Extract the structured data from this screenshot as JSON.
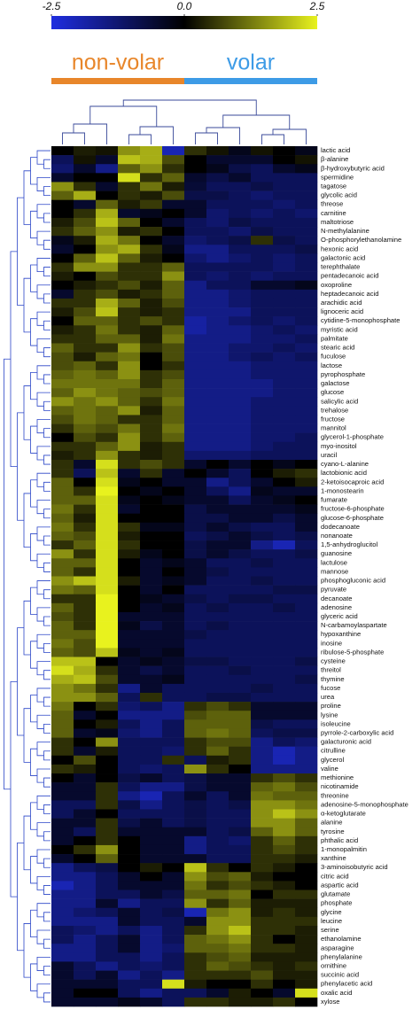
{
  "chart_data": {
    "type": "heatmap",
    "clim": [
      -2.5,
      2.5
    ],
    "cticks": [
      -2.5,
      {
        "value": 0,
        "label": "0.0"
      },
      2.5
    ],
    "colors": [
      "#1f2ee0",
      "#000000",
      "#e8f21e"
    ],
    "groups": [
      {
        "name": "non-volar",
        "color": "#e8862a",
        "columns": 6
      },
      {
        "name": "volar",
        "color": "#3d9be6",
        "columns": 6
      }
    ],
    "rows": [
      "lactic acid",
      "β-alanine",
      "β-hydroxybutyric acid",
      "spermidine",
      "tagatose",
      "glycolic acid",
      "threose",
      "carnitine",
      "maltotriose",
      "N-methylalanine",
      "O-phosphorylethanolamine",
      "hexonic acid",
      "galactonic acid",
      "terephthalate",
      "pentadecanoic acid",
      "oxoproline",
      "heptadecanoic acid",
      "arachidic acid",
      "lignoceric acid",
      "cytidine-5-monophosphate",
      "myristic acid",
      "palmitate",
      "stearic acid",
      "fuculose",
      "lactose",
      "pyrophosphate",
      "galactose",
      "glucose",
      "salicylic acid",
      "trehalose",
      "fructose",
      "mannitol",
      "glycerol-1-phosphate",
      "myo-inositol",
      "uracil",
      "cyano-L-alanine",
      "lactobionic acid",
      "2-ketoisocaproic acid",
      "1-monostearin",
      "fumarate",
      "fructose-6-phosphate",
      "glucose-6-phosphate",
      "dodecanoate",
      "nonanoate",
      "1,5-anhydroglucitol",
      "guanosine",
      "lactulose",
      "mannose",
      "phosphogluconic acid",
      "pyruvate",
      "decanoate",
      "adenosine",
      "glyceric acid",
      "N-carbamoylaspartate",
      "hypoxanthine",
      "inosine",
      "ribulose-5-phosphate",
      "cysteine",
      "threitol",
      "thymine",
      "fucose",
      "urea",
      "proline",
      "lysine",
      "isoleucine",
      "pyrrole-2-carboxylic acid",
      "galacturonic acid",
      "citrulline",
      "glycerol",
      "valine",
      "methionine",
      "nicotinamide",
      "threonine",
      "adenosine-5-monophosphate",
      "α-ketoglutarate",
      "alanine",
      "tyrosine",
      "phthalic acid",
      "1-monopalmitin",
      "xanthine",
      "3-aminoisobutyric acid",
      "citric acid",
      "aspartic acid",
      "glutamate",
      "phosphate",
      "glycine",
      "leucine",
      "serine",
      "ethanolamine",
      "asparagine",
      "phenylalanine",
      "ornithine",
      "succinic acid",
      "phenylacetic acid",
      "oxalic acid",
      "xylose"
    ],
    "values": [
      [
        0,
        0.3,
        0.2,
        1.5,
        1.8,
        -2,
        0.5,
        0.2,
        -0.3,
        0.2,
        0,
        -0.3
      ],
      [
        -1,
        0.2,
        -0.5,
        2,
        1.8,
        0.8,
        0,
        -0.5,
        -0.5,
        -0.5,
        0,
        0.2
      ],
      [
        -1.2,
        -0.5,
        -1.5,
        1,
        1.5,
        0.5,
        0,
        -0.3,
        -0.8,
        -1,
        -0.5,
        -0.3
      ],
      [
        -0.5,
        0,
        0,
        2.3,
        0.5,
        1,
        -0.5,
        -0.8,
        -0.5,
        -1,
        -1,
        -1
      ],
      [
        1.5,
        0.5,
        -0.5,
        0.5,
        1.2,
        0.3,
        -0.6,
        -1,
        -1,
        -0.8,
        -1,
        -1
      ],
      [
        1,
        1.8,
        0,
        0.5,
        0.3,
        0.8,
        -0.8,
        -0.8,
        -1,
        -1.2,
        -1,
        -1
      ],
      [
        0,
        -0.5,
        1,
        0.3,
        0.6,
        -0.5,
        -0.5,
        -1,
        -1,
        -1,
        -1.2,
        -1
      ],
      [
        0,
        0.5,
        1.8,
        -0.5,
        -0.3,
        0,
        -0.5,
        -1.2,
        -1,
        -1.2,
        -1,
        -1.2
      ],
      [
        0.3,
        0.8,
        2,
        1,
        0,
        -0.5,
        -1,
        -1.2,
        -0.8,
        -1,
        -1,
        -1
      ],
      [
        0.5,
        1,
        1.5,
        0.3,
        0.5,
        0,
        -1,
        -1,
        -1.2,
        -0.8,
        -1,
        -1
      ],
      [
        -0.3,
        0.3,
        1.8,
        1.2,
        0,
        -0.5,
        -1.2,
        -1,
        -0.8,
        0.5,
        -0.8,
        -1
      ],
      [
        -0.5,
        0,
        1.5,
        1.8,
        0.5,
        -0.3,
        -1.5,
        -1.5,
        -1,
        -1,
        -1,
        -0.8
      ],
      [
        0,
        1,
        2,
        1,
        0.3,
        0,
        -1.2,
        -1.5,
        -1.2,
        -1,
        -1.2,
        -1
      ],
      [
        0.5,
        1.5,
        1.5,
        0.5,
        0.5,
        1,
        -1,
        -1,
        -1,
        -1,
        -1.2,
        -1
      ],
      [
        0.3,
        0,
        0.8,
        0.5,
        0.5,
        1.5,
        -1,
        -1.2,
        -1,
        -1.2,
        -1,
        -1
      ],
      [
        0,
        0.3,
        0.5,
        0.8,
        0.3,
        1,
        -1.5,
        -1,
        -1,
        -0.5,
        -0.5,
        -0.3
      ],
      [
        -0.5,
        0.5,
        0.8,
        0.3,
        0.5,
        1,
        -1.5,
        -1.5,
        -1.2,
        -1,
        -1,
        -1
      ],
      [
        0.5,
        0.5,
        1.8,
        1,
        0.3,
        0.8,
        -1.5,
        -1.5,
        -1.2,
        -1,
        -1,
        -1
      ],
      [
        0.3,
        0.8,
        2,
        0.5,
        0.3,
        0.5,
        -1.5,
        -1.5,
        -1.5,
        -1,
        -1,
        -1
      ],
      [
        0,
        1,
        1,
        0.5,
        0.8,
        0.5,
        -1.8,
        -1.5,
        -1.2,
        -1,
        -1.2,
        -1
      ],
      [
        0.3,
        0.5,
        1.2,
        0.5,
        0.3,
        1,
        -1.8,
        -1.5,
        -1.5,
        -1.2,
        -1,
        -1.2
      ],
      [
        0.5,
        0.5,
        1,
        1,
        0.3,
        1.2,
        -1.5,
        -1.5,
        -1.5,
        -1.2,
        -1.2,
        -1
      ],
      [
        1,
        0.5,
        0.5,
        1.5,
        0.5,
        0.8,
        -1.5,
        -1.5,
        -1.2,
        -1.2,
        -1,
        -1.2
      ],
      [
        0.8,
        0.3,
        1,
        1.2,
        0,
        0.8,
        -1.5,
        -1.5,
        -1.2,
        -1,
        -1.2,
        -1
      ],
      [
        0.8,
        1,
        0.5,
        1.5,
        0,
        0.5,
        -1.5,
        -1.5,
        -1.5,
        -1.2,
        -1.2,
        -1.2
      ],
      [
        1,
        1.2,
        1,
        1.5,
        0.5,
        0.8,
        -1.5,
        -1.5,
        -1.5,
        -1.2,
        -1.2,
        -1.2
      ],
      [
        1.2,
        1.2,
        1.2,
        1.2,
        0.5,
        1,
        -1.5,
        -1.5,
        -1.5,
        -1.5,
        -1.2,
        -1.2
      ],
      [
        1,
        1.5,
        1.2,
        1,
        0.8,
        1,
        -1.5,
        -1.5,
        -1.5,
        -1.5,
        -1.2,
        -1.2
      ],
      [
        1.5,
        1.2,
        1.5,
        1,
        0.5,
        1.2,
        -1.5,
        -1.5,
        -1.5,
        -1.2,
        -1.2,
        -1.2
      ],
      [
        1,
        1.2,
        1,
        1.5,
        0.3,
        1,
        -1.5,
        -1.5,
        -1.5,
        -1.2,
        -1.2,
        -1.2
      ],
      [
        0.8,
        1.2,
        1,
        0.5,
        0.5,
        1,
        -1.5,
        -1.5,
        -1.5,
        -1.2,
        -1.2,
        -1.2
      ],
      [
        0.5,
        1,
        0.8,
        1.2,
        0.5,
        1.2,
        -1.5,
        -1.5,
        -1.5,
        -1.2,
        -1.2,
        -1.2
      ],
      [
        0,
        0.8,
        0.5,
        1.5,
        0.5,
        1,
        -1.5,
        -1.5,
        -1.5,
        -1.2,
        -1.2,
        -1
      ],
      [
        0.5,
        0.5,
        1,
        1.5,
        0.3,
        0.5,
        -1.5,
        -1.5,
        -1.5,
        -1.2,
        -1,
        -1
      ],
      [
        0.3,
        0.5,
        1.5,
        0.5,
        0.3,
        0.5,
        -1.2,
        -1.2,
        -1.2,
        -1,
        -1,
        -1
      ],
      [
        0.5,
        -0.5,
        2.3,
        0.5,
        0.8,
        0.5,
        -0.5,
        0,
        -0.5,
        0,
        -0.3,
        0
      ],
      [
        0.5,
        -1,
        2,
        -0.5,
        0.5,
        -0.5,
        0,
        -0.5,
        -1,
        0,
        0.3,
        0.5
      ],
      [
        1,
        0,
        2.3,
        -0.3,
        0,
        -0.5,
        -0.5,
        -1.5,
        -1,
        -0.5,
        0,
        0.3
      ],
      [
        1,
        0.5,
        2.5,
        0,
        -0.3,
        0,
        -0.5,
        -1,
        -1.5,
        -0.3,
        -0.5,
        -0.5
      ],
      [
        1,
        1,
        2.3,
        -0.3,
        0,
        -0.3,
        -0.5,
        -0.5,
        -1,
        -0.5,
        -0.3,
        0
      ],
      [
        1.2,
        0.5,
        2.3,
        -0.5,
        0,
        0,
        -0.8,
        -0.5,
        -0.5,
        -0.5,
        -0.5,
        -0.3
      ],
      [
        1,
        0.3,
        2.3,
        0,
        0,
        0,
        -0.8,
        -0.8,
        -0.5,
        -0.5,
        -0.8,
        -0.5
      ],
      [
        1.2,
        0.5,
        2.3,
        0.5,
        -0.3,
        -0.3,
        -0.8,
        -0.5,
        -0.8,
        -1,
        -1,
        -0.5
      ],
      [
        1,
        0.8,
        2.3,
        0.3,
        0,
        0,
        -1,
        -0.8,
        -0.5,
        -0.8,
        -1,
        -0.8
      ],
      [
        0.5,
        1,
        2.3,
        0.5,
        0,
        0,
        -0.8,
        -0.5,
        -0.5,
        -1.5,
        -2,
        -1
      ],
      [
        1.5,
        0.5,
        2.3,
        0.3,
        -0.3,
        0,
        -0.8,
        -0.5,
        -0.8,
        -1,
        -1,
        -0.8
      ],
      [
        1,
        1,
        2.3,
        0,
        -0.5,
        -0.3,
        -0.5,
        -1,
        -1,
        -0.8,
        -1,
        -1
      ],
      [
        1,
        0.5,
        2.3,
        0,
        -0.5,
        0,
        -0.5,
        -0.8,
        -1,
        -1,
        -1,
        -1
      ],
      [
        1.5,
        2,
        2.3,
        0.3,
        -0.5,
        -0.3,
        -0.5,
        -1,
        -1,
        -0.8,
        -1,
        -1
      ],
      [
        1.2,
        1,
        2.3,
        0,
        -0.5,
        0,
        -1,
        -1,
        -1,
        -1,
        -0.8,
        -0.8
      ],
      [
        0.5,
        0.5,
        2.5,
        0,
        -0.3,
        -0.5,
        -0.8,
        -1,
        -0.8,
        -0.8,
        -1,
        -1
      ],
      [
        1,
        0.5,
        2.5,
        0,
        -0.5,
        -0.3,
        -1,
        -0.8,
        -1,
        -1,
        -0.8,
        -1
      ],
      [
        0.8,
        0.5,
        2.5,
        -0.5,
        -0.5,
        -0.5,
        -1,
        -1,
        -1,
        -1,
        -1,
        -1
      ],
      [
        1,
        0.5,
        2.5,
        -0.3,
        -0.8,
        -0.5,
        -1,
        -0.8,
        -1,
        -1,
        -1,
        -1
      ],
      [
        1,
        1,
        2.5,
        -0.5,
        -0.5,
        -0.5,
        -0.8,
        -1,
        -1,
        -1,
        -1,
        -1
      ],
      [
        1.2,
        0.8,
        2.5,
        -0.5,
        -0.5,
        -0.5,
        -1,
        -1,
        -1,
        -1,
        -1,
        -1
      ],
      [
        1,
        0.8,
        2,
        -0.3,
        -0.5,
        -0.3,
        -1,
        -1,
        -1,
        -1,
        -1,
        -1
      ],
      [
        2,
        2,
        0,
        -0.5,
        -0.3,
        -0.5,
        -0.8,
        -0.8,
        -1,
        -1,
        -1,
        -0.8
      ],
      [
        2.3,
        1.8,
        0.5,
        -0.5,
        -0.8,
        -0.5,
        -1,
        -1,
        -0.8,
        -1,
        -1,
        -1
      ],
      [
        1.8,
        2,
        0.8,
        -0.5,
        -0.5,
        -0.3,
        -1,
        -1,
        -1,
        -1,
        -1,
        -0.8
      ],
      [
        1.5,
        1.2,
        0.5,
        -1.5,
        -0.5,
        -1,
        -1,
        -1,
        -1,
        -0.8,
        -1,
        -1
      ],
      [
        1.5,
        1.5,
        1,
        -1,
        0.5,
        -1,
        -1,
        -0.8,
        -0.8,
        -1,
        -1,
        -1
      ],
      [
        1.2,
        0,
        0.5,
        -1.2,
        -1,
        -1.5,
        0.5,
        0.8,
        0.5,
        -0.5,
        -0.5,
        -0.5
      ],
      [
        1,
        -0.5,
        0,
        -1.5,
        -1.5,
        -1.5,
        0.8,
        1,
        1,
        -0.5,
        -0.5,
        -0.5
      ],
      [
        1,
        0,
        0.3,
        -1,
        -1.5,
        -1,
        1,
        1,
        1,
        -0.8,
        -1,
        -1
      ],
      [
        1,
        -0.5,
        -0.3,
        -1.2,
        -1.5,
        -1,
        1,
        1.2,
        1,
        -1,
        -0.8,
        -0.8
      ],
      [
        0.5,
        0,
        1.5,
        -1,
        -1,
        -1,
        0.5,
        0.8,
        0.8,
        -1.5,
        -1,
        -1.2
      ],
      [
        0.5,
        -0.5,
        0.3,
        -1,
        -1,
        -1.2,
        0.5,
        1,
        0.5,
        -1.5,
        -2,
        -1.5
      ],
      [
        0,
        0.8,
        0,
        -1,
        -1,
        0.5,
        -1,
        0.3,
        0.5,
        -1.5,
        -2,
        -1.5
      ],
      [
        0.5,
        0.3,
        0,
        -1,
        -1.2,
        -1,
        1.5,
        0.5,
        0,
        -1.5,
        -1.5,
        -1.5
      ],
      [
        0,
        -0.5,
        0,
        -0.8,
        -0.5,
        -1,
        -0.8,
        -0.5,
        -0.5,
        0.5,
        0.8,
        0.5
      ],
      [
        -0.5,
        -0.5,
        0.5,
        -1,
        -1.5,
        -1.5,
        -0.8,
        -0.5,
        -0.5,
        1,
        1.2,
        0.8
      ],
      [
        -0.5,
        -0.5,
        0.5,
        -1.5,
        -2,
        -1,
        -0.5,
        -1,
        -0.5,
        1.2,
        1,
        1
      ],
      [
        -1,
        -1,
        0.5,
        -0.8,
        -1.5,
        -1,
        -0.8,
        -1,
        -0.8,
        1.5,
        1.5,
        1.2
      ],
      [
        -1,
        -0.5,
        0,
        -1,
        -1,
        -1,
        -0.8,
        -1,
        -1,
        1.5,
        2,
        1.5
      ],
      [
        -0.5,
        -0.5,
        0.5,
        -0.8,
        -0.5,
        -1,
        -0.8,
        -1,
        -1,
        1.5,
        1.5,
        1
      ],
      [
        -0.5,
        -1,
        0.5,
        -0.5,
        -0.5,
        -0.5,
        -0.5,
        -1,
        -0.8,
        1,
        1.5,
        1
      ],
      [
        -0.5,
        0,
        0.5,
        0,
        -0.5,
        -0.5,
        -1.5,
        -1,
        -1.2,
        0.5,
        1,
        0.5
      ],
      [
        0,
        0.5,
        1.5,
        0,
        -0.5,
        -0.5,
        -1.5,
        -1,
        -1,
        0.5,
        0.8,
        0.5
      ],
      [
        -0.5,
        0,
        1,
        0,
        -0.5,
        -0.5,
        -0.5,
        -1,
        -1,
        0.5,
        0.5,
        0.3
      ],
      [
        -1.5,
        -1,
        -0.8,
        0,
        0.3,
        0,
        2,
        0.5,
        0,
        0.5,
        0.3,
        0
      ],
      [
        -1.5,
        -1.5,
        -1,
        -0.5,
        0,
        -0.5,
        1.5,
        0.8,
        1,
        0.3,
        0,
        0
      ],
      [
        -2,
        -1.5,
        -1,
        -0.5,
        -0.5,
        -0.5,
        1.2,
        0.5,
        0.8,
        0.5,
        0.3,
        0
      ],
      [
        -1.5,
        -1.5,
        -1,
        -1,
        -0.5,
        -0.8,
        1,
        1,
        1.2,
        0,
        0.5,
        0.5
      ],
      [
        -1.5,
        -1.5,
        -0.5,
        -1.5,
        -1,
        -1,
        1.5,
        0.5,
        1,
        0.3,
        0.3,
        0.3
      ],
      [
        -1.5,
        -1.2,
        -1,
        -0.5,
        -1,
        -0.8,
        -2,
        1.2,
        1.5,
        0.3,
        0.5,
        0.3
      ],
      [
        -1.5,
        -1.5,
        -1.5,
        -0.5,
        -1,
        -1,
        -0.5,
        1.5,
        1.5,
        0.5,
        0.5,
        0.5
      ],
      [
        -1,
        -1.2,
        -1.5,
        -1,
        -1.5,
        -1,
        0.5,
        1.5,
        2,
        0.5,
        0.5,
        0.3
      ],
      [
        -1,
        -1.5,
        -1,
        -0.5,
        -1.5,
        -1,
        1,
        1.2,
        1.5,
        0.5,
        0,
        0.3
      ],
      [
        -1.5,
        -1.5,
        -1,
        -0.5,
        -1.5,
        -1.2,
        1,
        1,
        1.2,
        0.5,
        0.5,
        0.3
      ],
      [
        -1.5,
        -1.5,
        -1,
        -1,
        -1.5,
        -1,
        0.5,
        0.8,
        1,
        0.3,
        0.3,
        0.3
      ],
      [
        -0.5,
        -1,
        -1.5,
        -1,
        -1.2,
        -1,
        0.5,
        1,
        0.8,
        0.5,
        0.3,
        0.5
      ],
      [
        -0.5,
        -1,
        -0.5,
        -1.5,
        -1,
        -1.5,
        0.5,
        0.5,
        0.5,
        0.8,
        0.3,
        0.3
      ],
      [
        -0.5,
        -0.5,
        -0.5,
        -1,
        -1,
        2.3,
        0.3,
        0,
        0,
        0.5,
        0,
        0.3
      ],
      [
        -0.5,
        0,
        0,
        -1,
        -1.5,
        -1,
        -1,
        -0.5,
        0.3,
        0,
        -0.5,
        2.3
      ],
      [
        -0.5,
        -0.5,
        -0.5,
        -0.3,
        -0.5,
        -1,
        0.5,
        0.5,
        0.3,
        0.3,
        0.5,
        0
      ]
    ]
  }
}
